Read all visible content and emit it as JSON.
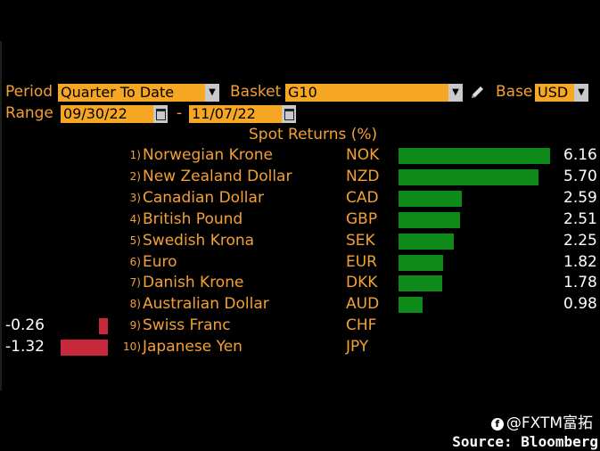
{
  "controls": {
    "period_label": "Period",
    "period_value": "Quarter To Date",
    "basket_label": "Basket",
    "basket_value": "G10",
    "base_label": "Base",
    "base_value": "USD",
    "range_label": "Range",
    "range_start": "09/30/22",
    "range_sep": "-",
    "range_end": "11/07/22"
  },
  "footer": {
    "brand": "@FXTM富拓",
    "source": "Source: Bloomberg"
  },
  "colors": {
    "positive": "#0d8a1a",
    "negative": "#c8283c",
    "accent": "#f5a623"
  },
  "chart_data": {
    "type": "bar",
    "title": "Spot Returns (%)",
    "ranks": [
      "1)",
      "2)",
      "3)",
      "4)",
      "5)",
      "6)",
      "7)",
      "8)",
      "9)",
      "10)"
    ],
    "categories": [
      "Norwegian Krone",
      "New Zealand Dollar",
      "Canadian Dollar",
      "British Pound",
      "Swedish Krona",
      "Euro",
      "Danish Krone",
      "Australian Dollar",
      "Swiss Franc",
      "Japanese Yen"
    ],
    "codes": [
      "NOK",
      "NZD",
      "CAD",
      "GBP",
      "SEK",
      "EUR",
      "DKK",
      "AUD",
      "CHF",
      "JPY"
    ],
    "values": [
      6.16,
      5.7,
      2.59,
      2.51,
      2.25,
      1.82,
      1.78,
      0.98,
      -0.26,
      -1.32
    ],
    "value_labels": [
      "6.16",
      "5.70",
      "2.59",
      "2.51",
      "2.25",
      "1.82",
      "1.78",
      "0.98",
      "-0.26",
      "-1.32"
    ]
  }
}
